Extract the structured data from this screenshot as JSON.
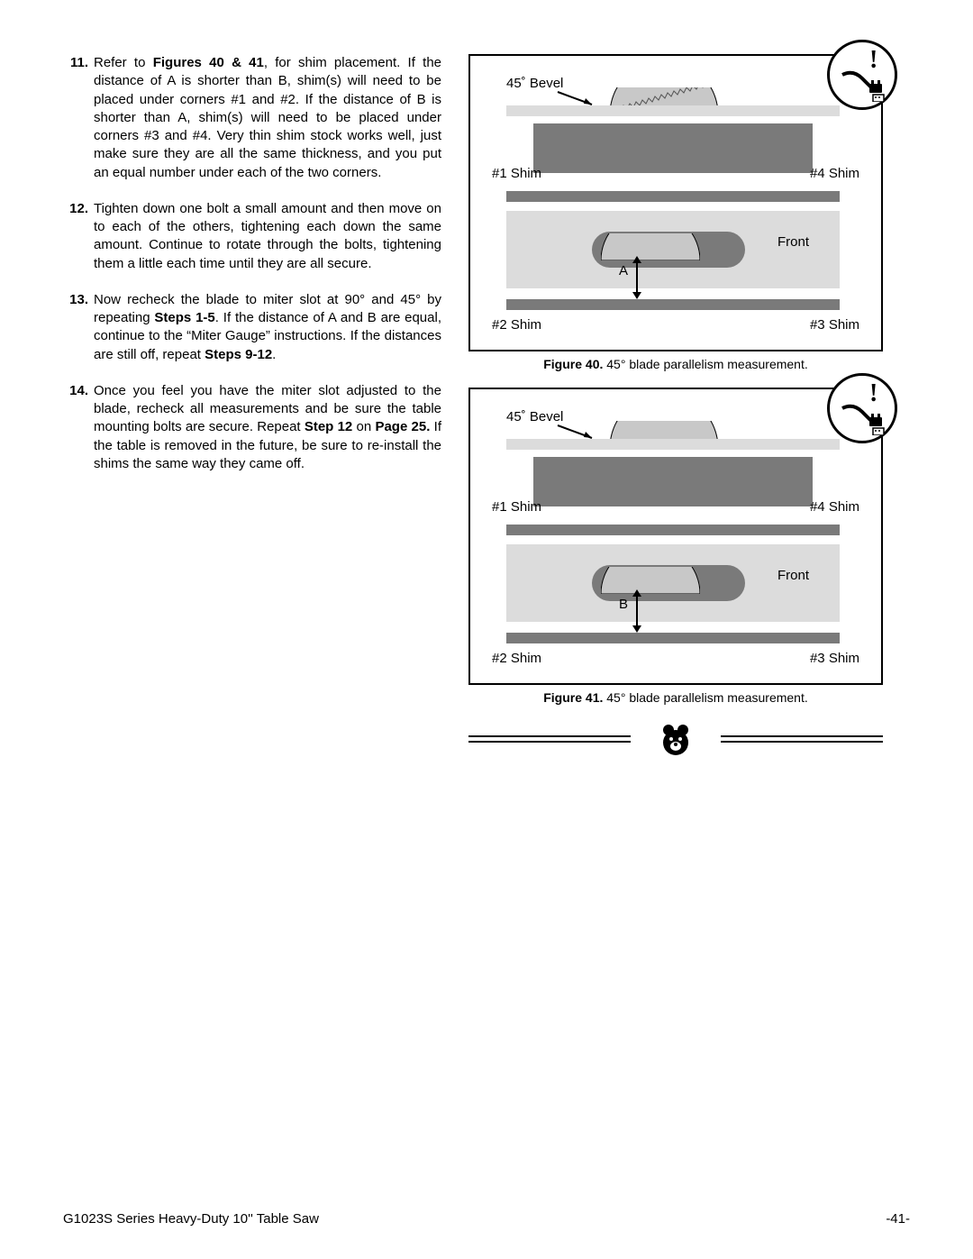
{
  "steps": [
    {
      "num": "11.",
      "html": "Refer to <b>Figures 40 & 41</b>, for shim placement. If the distance of A is shorter than B, shim(s) will need to be placed under corners #1 and #2. If the distance of B is shorter than A, shim(s) will need to be placed under corners #3 and #4. Very thin shim stock works well, just make sure they are all the same thickness, and you put an equal number under each of the two corners."
    },
    {
      "num": "12.",
      "html": "Tighten down one bolt a small amount and then move on to each of the others, tightening each down the same amount. Continue to rotate through the bolts, tightening them a little each time until they are all secure."
    },
    {
      "num": "13.",
      "html": "Now recheck the blade to miter slot at 90° and 45° by repeating <b>Steps 1-5</b>. If the distance of A and B are equal, continue to the &ldquo;Miter Gauge&rdquo; instructions. If the distances are still off, repeat <b>Steps 9-12</b>."
    },
    {
      "num": "14.",
      "html": "Once you feel you have the miter slot adjusted to the blade, recheck all measurements and be sure the table mounting bolts are secure. Repeat <b>Step 12</b> on <b>Page 25.</b> If the table is removed in the future, be sure to re-install the shims the same way they came off."
    }
  ],
  "fig40": {
    "bevel_label": "45˚ Bevel",
    "shim1": "#1 Shim",
    "shim2": "#2 Shim",
    "shim3": "#3 Shim",
    "shim4": "#4 Shim",
    "front": "Front",
    "meas": "A",
    "caption_bold": "Figure 40.",
    "caption_rest": " 45° blade parallelism measurement."
  },
  "fig41": {
    "bevel_label": "45˚ Bevel",
    "shim1": "#1 Shim",
    "shim2": "#2 Shim",
    "shim3": "#3 Shim",
    "shim4": "#4 Shim",
    "front": "Front",
    "meas": "B",
    "caption_bold": "Figure 41.",
    "caption_rest": " 45° blade parallelism measurement."
  },
  "footer": {
    "left": "G1023S Series Heavy-Duty 10'' Table Saw",
    "right": "-41-"
  },
  "colors": {
    "light_gray": "#dcdcdc",
    "dark_gray": "#7a7a7a",
    "black": "#000000",
    "white": "#ffffff"
  }
}
